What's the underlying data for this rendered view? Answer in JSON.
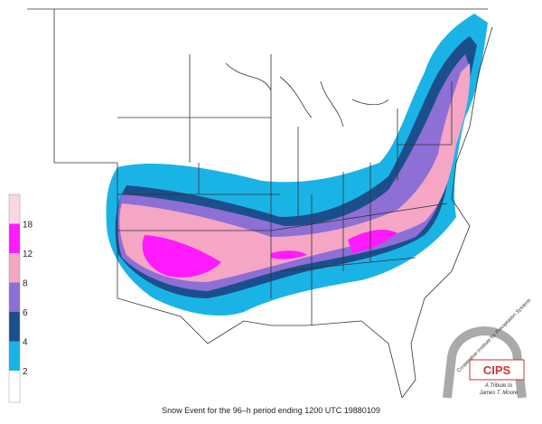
{
  "legend": {
    "ticks": [
      2,
      4,
      6,
      8,
      12,
      18
    ],
    "colors": [
      "#ffffff",
      "#1ab3e6",
      "#1b4f8c",
      "#8d6fd6",
      "#f4a6c4",
      "#ff1aff",
      "#fbd7df"
    ]
  },
  "caption": "Snow Event for the 96–h period ending 1200 UTC 19880109",
  "logo": {
    "name": "CIPS",
    "arc_text": "Cooperative Institute for Precipitation Systems",
    "tribute": "A Tribute to",
    "person": "James T. Moore"
  }
}
